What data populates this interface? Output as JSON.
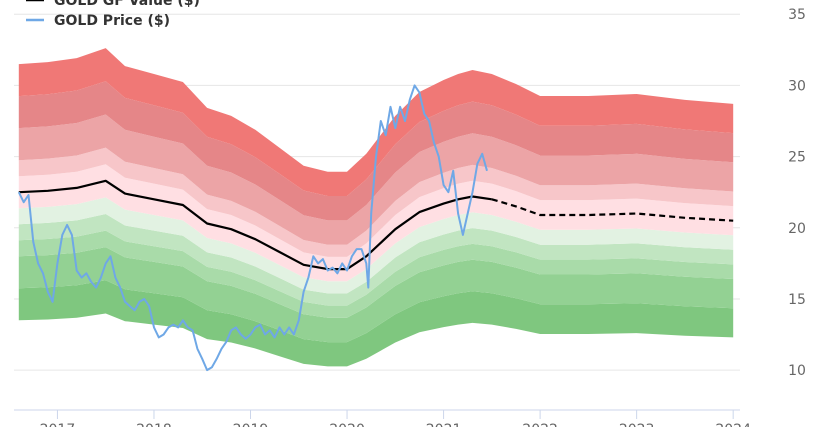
{
  "chart_data": {
    "type": "area",
    "title": "",
    "xlabel": "",
    "ylabel": "",
    "xlim": [
      2016.55,
      2024.05
    ],
    "ylim": [
      7.2,
      36
    ],
    "y_axis_side": "right",
    "y_ticks": [
      10,
      15,
      20,
      25,
      30,
      35
    ],
    "x_ticks": [
      2017,
      2018,
      2019,
      2020,
      2021,
      2022,
      2023,
      2024
    ],
    "grid": "horizontal",
    "legend": {
      "placement": "top-left",
      "entries": [
        {
          "name": "GOLD GF Value ($)",
          "color": "#000000"
        },
        {
          "name": "GOLD Price ($)",
          "color": "#6fa8e6"
        }
      ]
    },
    "band_offsets": [
      -0.3,
      -0.2,
      -0.15,
      -0.1,
      -0.05,
      0.05,
      0.1,
      0.2,
      0.3
    ],
    "band_colors": [
      "#7fc77f",
      "#93d193",
      "#a9dba9",
      "#c1e5c1",
      "#e2f2e2",
      "#ffdfe3",
      "#f7c6c9",
      "#eca4a6",
      "#e58688",
      "#f07876"
    ],
    "gf_value": {
      "name": "GOLD GF Value ($)",
      "x": [
        2016.6,
        2016.9,
        2017.2,
        2017.5,
        2017.7,
        2018.0,
        2018.3,
        2018.55,
        2018.8,
        2019.05,
        2019.3,
        2019.55,
        2019.8,
        2020.0,
        2020.2,
        2020.5,
        2020.75,
        2021.0,
        2021.15,
        2021.3,
        2021.5,
        2021.75,
        2022.0,
        2022.5,
        2023.0,
        2023.5,
        2024.0
      ],
      "y": [
        22.5,
        22.6,
        22.8,
        23.3,
        22.4,
        22.0,
        21.6,
        20.3,
        19.9,
        19.2,
        18.3,
        17.4,
        17.1,
        17.1,
        18.0,
        19.9,
        21.1,
        21.7,
        22.0,
        22.2,
        22.0,
        21.5,
        20.9,
        20.9,
        21.0,
        20.7,
        20.5
      ],
      "estimate_from": 2021.5
    },
    "price": {
      "name": "GOLD Price ($)",
      "x": [
        2016.6,
        2016.65,
        2016.7,
        2016.75,
        2016.8,
        2016.85,
        2016.9,
        2016.95,
        2017.0,
        2017.05,
        2017.1,
        2017.15,
        2017.2,
        2017.25,
        2017.3,
        2017.35,
        2017.4,
        2017.45,
        2017.5,
        2017.55,
        2017.6,
        2017.65,
        2017.7,
        2017.75,
        2017.8,
        2017.85,
        2017.9,
        2017.95,
        2018.0,
        2018.05,
        2018.1,
        2018.15,
        2018.2,
        2018.25,
        2018.3,
        2018.35,
        2018.4,
        2018.45,
        2018.5,
        2018.55,
        2018.6,
        2018.65,
        2018.7,
        2018.75,
        2018.8,
        2018.85,
        2018.9,
        2018.95,
        2019.0,
        2019.05,
        2019.1,
        2019.15,
        2019.2,
        2019.25,
        2019.3,
        2019.35,
        2019.4,
        2019.45,
        2019.5,
        2019.55,
        2019.6,
        2019.65,
        2019.7,
        2019.75,
        2019.8,
        2019.85,
        2019.9,
        2019.95,
        2020.0,
        2020.05,
        2020.1,
        2020.15,
        2020.2,
        2020.22,
        2020.25,
        2020.3,
        2020.35,
        2020.4,
        2020.45,
        2020.5,
        2020.55,
        2020.6,
        2020.65,
        2020.7,
        2020.75,
        2020.8,
        2020.85,
        2020.9,
        2020.95,
        2021.0,
        2021.05,
        2021.1,
        2021.15,
        2021.2,
        2021.25,
        2021.3,
        2021.35,
        2021.4,
        2021.45
      ],
      "y": [
        22.5,
        21.8,
        22.3,
        19.0,
        17.5,
        16.8,
        15.5,
        14.8,
        17.5,
        19.5,
        20.2,
        19.5,
        17.0,
        16.5,
        16.8,
        16.2,
        15.8,
        16.5,
        17.5,
        18.0,
        16.5,
        15.8,
        14.8,
        14.5,
        14.2,
        14.8,
        15.0,
        14.5,
        13.0,
        12.3,
        12.5,
        13.0,
        13.2,
        13.0,
        13.5,
        13.0,
        12.8,
        11.5,
        10.8,
        10.0,
        10.2,
        10.8,
        11.5,
        12.0,
        12.8,
        13.0,
        12.5,
        12.2,
        12.5,
        13.0,
        13.2,
        12.5,
        12.8,
        12.3,
        13.0,
        12.5,
        13.0,
        12.5,
        13.5,
        15.5,
        16.5,
        18.0,
        17.5,
        17.8,
        17.0,
        17.2,
        16.8,
        17.5,
        17.0,
        18.0,
        18.5,
        18.5,
        17.5,
        15.8,
        21.0,
        25.0,
        27.5,
        26.5,
        28.5,
        27.0,
        28.5,
        27.5,
        29.0,
        30.0,
        29.5,
        28.0,
        27.5,
        26.0,
        25.0,
        23.0,
        22.5,
        24.0,
        21.0,
        19.5,
        21.0,
        22.5,
        24.5,
        25.2,
        24.0
      ]
    }
  }
}
